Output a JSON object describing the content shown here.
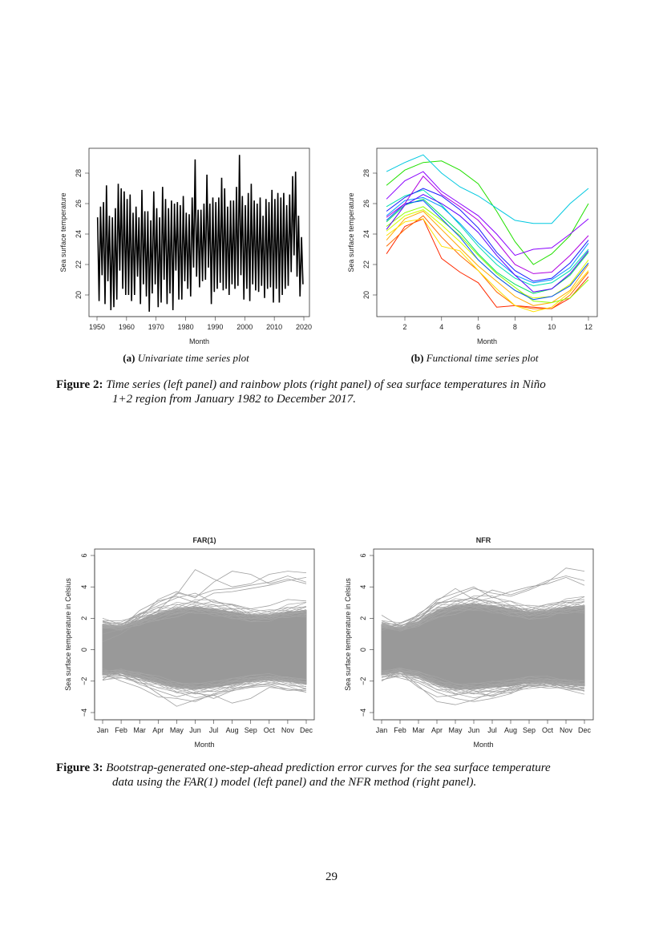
{
  "figure2": {
    "sub_a": {
      "label": "(a)",
      "text": "Univariate time series plot"
    },
    "sub_b": {
      "label": "(b)",
      "text": "Functional time series plot"
    },
    "caption": {
      "label": "Figure 2:",
      "line1": "Time series (left panel) and rainbow plots (right panel) of sea surface temperatures in Niño",
      "line2": "1+2 region from January 1982 to December 2017."
    }
  },
  "figure3": {
    "caption": {
      "label": "Figure 3:",
      "line1": "Bootstrap-generated one-step-ahead prediction error curves for the sea surface temperature",
      "line2": "data using the FAR(1) model (left panel) and the NFR method (right panel)."
    }
  },
  "page_number": "29",
  "chart_data": [
    {
      "id": "univariate",
      "type": "line",
      "title": "",
      "xlabel": "Month",
      "ylabel": "Sea surface temperature",
      "xlim": [
        1950,
        2020
      ],
      "ylim": [
        19,
        29.3
      ],
      "xticks": [
        1950,
        1960,
        1970,
        1980,
        1990,
        2000,
        2010,
        2020
      ],
      "yticks": [
        20,
        22,
        24,
        26,
        28
      ],
      "color": "#000000",
      "grid": false,
      "start_year": 1950,
      "annual_peaks": [
        25.1,
        25.8,
        26.1,
        27.2,
        25.2,
        25.1,
        25.7,
        27.3,
        27.0,
        26.8,
        26.3,
        26.6,
        25.4,
        25.8,
        25.1,
        26.9,
        25.5,
        25.5,
        24.9,
        26.8,
        25.7,
        25.1,
        27.1,
        26.3,
        25.7,
        26.2,
        26.0,
        26.1,
        25.9,
        26.5,
        25.4,
        25.3,
        26.4,
        28.9,
        25.6,
        25.6,
        26.0,
        27.9,
        26.0,
        26.4,
        26.1,
        26.4,
        27.7,
        27.0,
        25.8,
        26.2,
        26.2,
        27.1,
        29.2,
        26.5,
        25.9,
        26.7,
        27.3,
        26.2,
        26.0,
        26.4,
        25.2,
        26.3,
        26.1,
        26.9,
        26.3,
        26.7,
        26.4,
        26.7,
        25.9,
        26.6,
        27.8,
        28.1,
        25.2,
        23.8
      ],
      "annual_troughs": [
        19.6,
        21.3,
        19.4,
        20.9,
        19.0,
        19.2,
        19.7,
        21.6,
        20.4,
        20.0,
        20.0,
        19.6,
        20.0,
        21.2,
        19.4,
        20.7,
        19.9,
        18.9,
        20.1,
        20.7,
        19.2,
        19.5,
        21.0,
        19.4,
        20.1,
        19.0,
        21.6,
        19.7,
        19.7,
        20.9,
        20.4,
        19.9,
        21.8,
        21.2,
        20.5,
        20.9,
        21.0,
        21.8,
        19.4,
        20.2,
        20.4,
        20.8,
        20.3,
        20.4,
        20.0,
        20.7,
        20.4,
        20.6,
        21.3,
        19.7,
        20.4,
        19.6,
        20.7,
        20.3,
        20.2,
        20.6,
        19.8,
        20.4,
        20.5,
        19.5,
        20.4,
        19.5,
        20.0,
        20.4,
        20.6,
        21.5,
        22.6,
        21.2,
        19.9,
        20.7
      ]
    },
    {
      "id": "rainbow",
      "type": "line",
      "title": "",
      "xlabel": "Month",
      "ylabel": "Sea surface temperature",
      "xlim": [
        0.8,
        12.2
      ],
      "ylim": [
        19,
        29.3
      ],
      "xticks": [
        2,
        4,
        6,
        8,
        10,
        12
      ],
      "yticks": [
        20,
        22,
        24,
        26,
        28
      ],
      "palette": "rainbow",
      "grid": false,
      "months": [
        1,
        2,
        3,
        4,
        5,
        6,
        7,
        8,
        9,
        10,
        11,
        12
      ],
      "series": [
        {
          "color": "#ff2a00",
          "values": [
            22.7,
            24.5,
            25.0,
            22.4,
            21.5,
            20.8,
            19.2,
            19.3,
            19.2,
            19.1,
            19.8,
            21.2
          ]
        },
        {
          "color": "#ff6a00",
          "values": [
            23.2,
            24.3,
            25.2,
            23.8,
            22.6,
            21.6,
            20.2,
            19.3,
            19.1,
            19.1,
            20.0,
            21.5
          ]
        },
        {
          "color": "#ffaa00",
          "values": [
            23.6,
            25.0,
            25.5,
            24.3,
            23.1,
            21.9,
            20.9,
            19.9,
            19.3,
            19.5,
            20.3,
            22.0
          ]
        },
        {
          "color": "#ffe000",
          "values": [
            23.9,
            24.8,
            25.0,
            23.2,
            22.9,
            21.6,
            20.4,
            19.3,
            18.9,
            19.2,
            20.2,
            21.6
          ]
        },
        {
          "color": "#d4ff00",
          "values": [
            24.2,
            25.2,
            25.6,
            24.6,
            23.5,
            22.3,
            21.2,
            20.3,
            19.8,
            19.9,
            20.7,
            22.3
          ]
        },
        {
          "color": "#8cff00",
          "values": [
            24.5,
            25.4,
            25.8,
            24.9,
            23.9,
            22.6,
            21.4,
            20.5,
            19.6,
            19.5,
            19.8,
            21.0
          ]
        },
        {
          "color": "#22e000",
          "values": [
            27.2,
            28.2,
            28.7,
            28.8,
            28.2,
            27.3,
            25.5,
            23.5,
            22.0,
            22.7,
            23.9,
            26.0
          ]
        },
        {
          "color": "#00e060",
          "values": [
            24.8,
            25.9,
            26.3,
            25.2,
            24.1,
            22.7,
            21.5,
            20.7,
            20.1,
            20.4,
            21.3,
            22.8
          ]
        },
        {
          "color": "#00e0b0",
          "values": [
            25.8,
            26.5,
            26.9,
            25.9,
            24.6,
            23.2,
            22.0,
            21.1,
            20.6,
            20.8,
            21.6,
            23.0
          ]
        },
        {
          "color": "#00c8e0",
          "values": [
            28.1,
            28.7,
            29.2,
            28.0,
            27.1,
            26.5,
            25.7,
            24.9,
            24.7,
            24.7,
            26.0,
            27.0
          ]
        },
        {
          "color": "#0096ff",
          "values": [
            25.2,
            26.2,
            26.4,
            25.8,
            24.7,
            23.4,
            22.3,
            21.3,
            20.8,
            21.0,
            21.8,
            23.4
          ]
        },
        {
          "color": "#0050ff",
          "values": [
            24.9,
            26.0,
            26.2,
            25.0,
            23.8,
            22.3,
            21.2,
            20.3,
            19.7,
            19.9,
            20.6,
            22.1
          ]
        },
        {
          "color": "#1a1aff",
          "values": [
            25.5,
            26.4,
            27.0,
            26.5,
            25.6,
            24.4,
            22.8,
            21.6,
            20.9,
            21.1,
            22.1,
            23.6
          ]
        },
        {
          "color": "#5a00ff",
          "values": [
            24.3,
            25.9,
            26.6,
            26.0,
            25.2,
            24.1,
            22.6,
            21.3,
            20.2,
            20.4,
            21.4,
            22.9
          ]
        },
        {
          "color": "#8a00ff",
          "values": [
            26.3,
            27.5,
            28.1,
            26.8,
            26.0,
            25.2,
            24.0,
            22.6,
            23.0,
            23.1,
            24.0,
            25.0
          ]
        },
        {
          "color": "#b000e0",
          "values": [
            25.1,
            26.0,
            27.8,
            26.6,
            25.8,
            24.9,
            23.5,
            22.0,
            21.4,
            21.5,
            22.6,
            23.9
          ]
        }
      ]
    },
    {
      "id": "far1",
      "type": "line",
      "title": "FAR(1)",
      "xlabel": "Month",
      "ylabel": "Sea surface temperature in Celsius",
      "ylim": [
        -4.3,
        6.3
      ],
      "categories": [
        "Jan",
        "Feb",
        "Mar",
        "Apr",
        "May",
        "Jun",
        "Jul",
        "Aug",
        "Sep",
        "Oct",
        "Nov",
        "Dec"
      ],
      "yticks": [
        -4,
        -2,
        0,
        2,
        4,
        6
      ],
      "color": "#999999",
      "grid": false,
      "band_upper": [
        1.6,
        1.5,
        1.9,
        2.3,
        2.6,
        2.7,
        2.6,
        2.4,
        2.2,
        2.2,
        2.4,
        2.5
      ],
      "band_lower": [
        -1.6,
        -1.5,
        -1.8,
        -2.1,
        -2.4,
        -2.5,
        -2.4,
        -2.2,
        -2.0,
        -1.9,
        -2.0,
        -2.2
      ],
      "curves": [
        [
          1.5,
          1.2,
          2.2,
          3.0,
          3.5,
          5.1,
          4.5,
          4.0,
          4.2,
          4.8,
          5.0,
          4.9
        ],
        [
          0.5,
          1.0,
          1.8,
          2.5,
          3.6,
          3.4,
          3.8,
          3.9,
          4.1,
          4.3,
          4.7,
          4.3
        ],
        [
          1.0,
          1.3,
          2.0,
          3.2,
          3.7,
          3.3,
          4.3,
          5.0,
          4.8,
          4.2,
          4.5,
          4.2
        ],
        [
          2.0,
          1.6,
          2.3,
          2.8,
          3.3,
          3.6,
          3.0,
          2.9,
          2.6,
          2.8,
          3.2,
          3.1
        ],
        [
          1.8,
          1.4,
          2.5,
          3.1,
          3.4,
          3.0,
          3.6,
          3.7,
          3.9,
          4.1,
          4.4,
          4.6
        ],
        [
          -1.9,
          -1.2,
          -2.0,
          -2.8,
          -3.6,
          -3.2,
          -2.9,
          -3.4,
          -3.1,
          -2.4,
          -2.5,
          -2.6
        ],
        [
          -1.5,
          -2.0,
          -2.4,
          -3.0,
          -3.1,
          -3.3,
          -2.8,
          -2.5,
          -2.3,
          -2.2,
          -2.5,
          -2.7
        ],
        [
          -1.2,
          -1.6,
          -2.2,
          -2.6,
          -3.0,
          -2.7,
          -3.1,
          -2.6,
          -2.4,
          -2.3,
          -2.6,
          -2.5
        ]
      ]
    },
    {
      "id": "nfr",
      "type": "line",
      "title": "NFR",
      "xlabel": "Month",
      "ylabel": "Sea surface temperature in Celsius",
      "ylim": [
        -4.3,
        6.3
      ],
      "categories": [
        "Jan",
        "Feb",
        "Mar",
        "Apr",
        "May",
        "Jun",
        "Jul",
        "Aug",
        "Sep",
        "Oct",
        "Nov",
        "Dec"
      ],
      "yticks": [
        -4,
        -2,
        0,
        2,
        4,
        6
      ],
      "color": "#999999",
      "grid": false,
      "band_upper": [
        1.6,
        1.4,
        1.8,
        2.5,
        2.8,
        2.9,
        2.8,
        2.6,
        2.4,
        2.5,
        2.7,
        2.8
      ],
      "band_lower": [
        -1.6,
        -1.4,
        -1.7,
        -2.2,
        -2.5,
        -2.5,
        -2.4,
        -2.3,
        -2.1,
        -2.1,
        -2.2,
        -2.3
      ],
      "curves": [
        [
          1.7,
          1.3,
          2.0,
          2.9,
          3.4,
          3.9,
          3.6,
          3.4,
          3.8,
          4.3,
          5.2,
          5.0
        ],
        [
          2.2,
          1.5,
          1.9,
          3.1,
          3.9,
          3.2,
          3.8,
          3.5,
          3.9,
          4.4,
          4.7,
          4.4
        ],
        [
          1.2,
          1.7,
          2.2,
          3.2,
          3.6,
          4.0,
          3.3,
          3.7,
          4.0,
          4.2,
          4.6,
          4.1
        ],
        [
          1.4,
          1.2,
          2.3,
          3.0,
          3.1,
          3.3,
          3.0,
          2.7,
          2.5,
          2.9,
          3.1,
          3.2
        ],
        [
          -2.0,
          -1.3,
          -2.3,
          -3.3,
          -3.5,
          -3.2,
          -2.7,
          -2.6,
          -2.3,
          -2.3,
          -2.5,
          -2.6
        ],
        [
          -1.5,
          -1.8,
          -2.1,
          -2.7,
          -3.1,
          -3.3,
          -3.1,
          -2.8,
          -2.2,
          -2.1,
          -2.4,
          -2.5
        ],
        [
          -1.3,
          -1.5,
          -2.4,
          -3.0,
          -2.9,
          -2.6,
          -3.0,
          -2.5,
          -2.3,
          -2.2,
          -2.3,
          -2.4
        ]
      ]
    }
  ]
}
